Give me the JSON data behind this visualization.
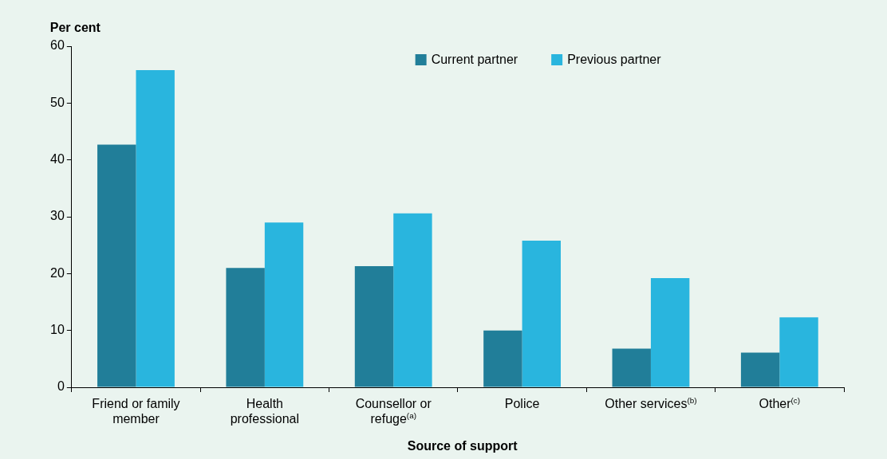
{
  "chart_data": {
    "type": "bar",
    "xlabel": "Source of support",
    "ylabel": "Per cent",
    "categories": [
      "Friend or family member",
      "Health professional",
      "Counsellor or refuge$^{(a)}$",
      "Police",
      "Other services$^{(b)}$",
      "Other$^{(c)}$"
    ],
    "series": [
      {
        "name": "Current partner",
        "color": "#217e99",
        "values": [
          42.7,
          21.0,
          21.3,
          10.0,
          6.8,
          6.1
        ]
      },
      {
        "name": "Previous partner",
        "color": "#29b5de",
        "values": [
          55.8,
          29.0,
          30.6,
          25.8,
          19.2,
          12.3
        ]
      }
    ],
    "ylim": [
      0,
      60
    ],
    "yticks": [
      0,
      10,
      20,
      30,
      40,
      50,
      60
    ],
    "grid": false,
    "legend": "top right"
  }
}
